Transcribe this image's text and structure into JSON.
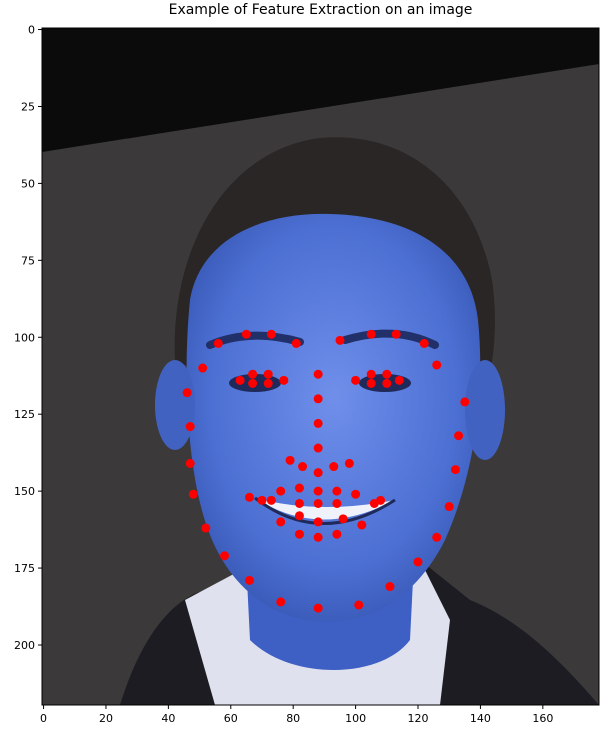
{
  "title": "Example of Feature Extraction on an image",
  "colors": {
    "marker": "#ff0000",
    "face_tint": "#4f74d8",
    "background": "#3a3838",
    "top_band": "#0a0a0a"
  },
  "image": {
    "description_tokens": [
      "image-region",
      "face-region",
      "hair-region",
      "suit-region"
    ]
  },
  "chart_data": {
    "type": "scatter",
    "title": "Example of Feature Extraction on an image",
    "xlabel": "",
    "ylabel": "",
    "xlim": [
      -0.5,
      178
    ],
    "ylim": [
      219.5,
      -0.5
    ],
    "y_inverted": true,
    "grid": false,
    "xticks": [
      0,
      20,
      40,
      60,
      80,
      100,
      120,
      140,
      160
    ],
    "yticks": [
      0,
      25,
      50,
      75,
      100,
      125,
      150,
      175,
      200
    ],
    "points": [
      [
        46,
        118
      ],
      [
        47,
        129
      ],
      [
        47,
        141
      ],
      [
        48,
        151
      ],
      [
        52,
        162
      ],
      [
        58,
        171
      ],
      [
        66,
        179
      ],
      [
        76,
        186
      ],
      [
        88,
        188
      ],
      [
        101,
        187
      ],
      [
        111,
        181
      ],
      [
        120,
        173
      ],
      [
        126,
        165
      ],
      [
        130,
        155
      ],
      [
        132,
        143
      ],
      [
        133,
        132
      ],
      [
        135,
        121
      ],
      [
        56,
        102
      ],
      [
        65,
        99
      ],
      [
        73,
        99
      ],
      [
        81,
        102
      ],
      [
        95,
        101
      ],
      [
        105,
        99
      ],
      [
        113,
        99
      ],
      [
        122,
        102
      ],
      [
        126,
        109
      ],
      [
        88,
        112
      ],
      [
        88,
        120
      ],
      [
        88,
        128
      ],
      [
        88,
        136
      ],
      [
        79,
        140
      ],
      [
        83,
        142
      ],
      [
        88,
        144
      ],
      [
        93,
        142
      ],
      [
        98,
        141
      ],
      [
        63,
        114
      ],
      [
        67,
        112
      ],
      [
        72,
        112
      ],
      [
        77,
        114
      ],
      [
        72,
        115
      ],
      [
        67,
        115
      ],
      [
        100,
        114
      ],
      [
        105,
        112
      ],
      [
        110,
        112
      ],
      [
        114,
        114
      ],
      [
        110,
        115
      ],
      [
        105,
        115
      ],
      [
        51,
        110
      ],
      [
        66,
        152
      ],
      [
        70,
        153
      ],
      [
        76,
        150
      ],
      [
        82,
        149
      ],
      [
        88,
        150
      ],
      [
        94,
        150
      ],
      [
        100,
        151
      ],
      [
        106,
        154
      ],
      [
        108,
        153
      ],
      [
        96,
        159
      ],
      [
        88,
        160
      ],
      [
        82,
        158
      ],
      [
        76,
        160
      ],
      [
        73,
        153
      ],
      [
        102,
        161
      ],
      [
        82,
        164
      ],
      [
        88,
        165
      ],
      [
        94,
        164
      ],
      [
        82,
        154
      ],
      [
        88,
        154
      ],
      [
        94,
        154
      ]
    ]
  }
}
